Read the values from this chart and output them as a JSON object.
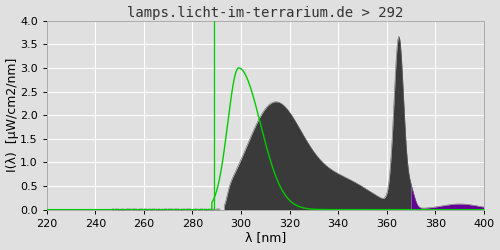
{
  "title": "lamps.licht-im-terrarium.de > 292",
  "xlabel": "λ [nm]",
  "ylabel": "I(λ)  [μW/cm2/nm]",
  "xlim": [
    220,
    400
  ],
  "ylim": [
    0,
    4.0
  ],
  "yticks": [
    0.0,
    0.5,
    1.0,
    1.5,
    2.0,
    2.5,
    3.0,
    3.5,
    4.0
  ],
  "xticks": [
    220,
    240,
    260,
    280,
    300,
    320,
    340,
    360,
    380,
    400
  ],
  "background_color": "#e0e0e0",
  "axes_bg_color": "#e0e0e0",
  "title_color": "#333333",
  "title_fontsize": 10,
  "axis_label_fontsize": 9,
  "tick_fontsize": 8,
  "green_line_color": "#00cc00",
  "spectrum_dark_color": "#3a3a3a",
  "spectrum_purple_color": "#660099",
  "vd3_cutoff": 292
}
